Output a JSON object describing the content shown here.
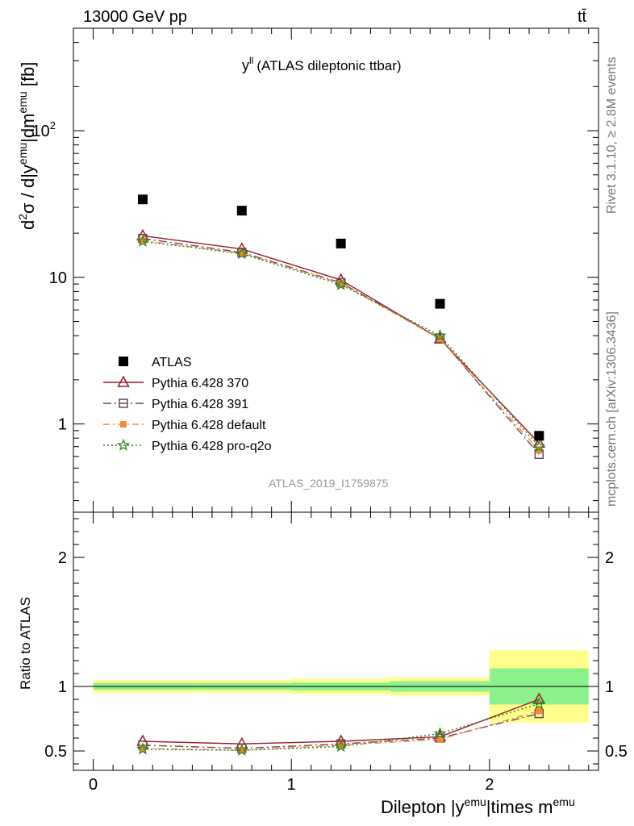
{
  "header": {
    "left": "13000 GeV pp",
    "right": "tt̄"
  },
  "side_labels": {
    "rivet": "Rivet 3.1.10, ≥ 2.8M events",
    "source": "mcplots.cern.ch [arXiv:1306.3436]"
  },
  "plot_title": "y^ll (ATLAS dileptonic ttbar)",
  "watermark": "ATLAS_2019_I1759875",
  "axes": {
    "xlabel": "Dilepton |y^emu|times m^emu",
    "ylabel_main": "d^2σ / d|y^emu|dm^emu [fb]",
    "ylabel_ratio": "Ratio to ATLAS",
    "main_ticks": [
      "1",
      "10",
      "10^2"
    ],
    "ratio_ticks": [
      "0.5",
      "1",
      "2"
    ],
    "x_ticks": [
      "0",
      "1",
      "2"
    ]
  },
  "colors": {
    "data": "#000000",
    "p370": "#a01a2a",
    "p391": "#6a4a5e",
    "pdefault": "#f58a36",
    "pq2o": "#2a8a1a",
    "band_inner": "#8cf08c",
    "band_outer": "#ffff8c"
  },
  "chart_data": {
    "type": "line",
    "x": [
      0.25,
      0.75,
      1.25,
      1.75,
      2.25
    ],
    "x_edges": [
      0,
      0.5,
      1.0,
      1.5,
      2.0,
      2.5
    ],
    "xlim": [
      -0.1,
      2.55
    ],
    "ylim_main": [
      0.25,
      500
    ],
    "y_scale_main": "log",
    "ylim_ratio": [
      0.35,
      2.35
    ],
    "legend_position": "lower-left",
    "series": [
      {
        "name": "ATLAS",
        "key": "data",
        "marker": "square",
        "dash": "none",
        "values": [
          34,
          28.5,
          17,
          6.6,
          0.83
        ],
        "ratio": [
          1,
          1,
          1,
          1,
          1
        ]
      },
      {
        "name": "Pythia 6.428 370",
        "key": "p370",
        "marker": "triangle",
        "dash": "none",
        "values": [
          19.2,
          15.6,
          9.6,
          3.8,
          0.74
        ],
        "ratio": [
          0.575,
          0.555,
          0.575,
          0.61,
          0.9
        ]
      },
      {
        "name": "Pythia 6.428 391",
        "key": "p391",
        "marker": "open-square",
        "dash": "10,4,2,4",
        "values": [
          18.4,
          14.8,
          9.2,
          3.85,
          0.62
        ],
        "ratio": [
          0.545,
          0.52,
          0.555,
          0.6,
          0.79
        ]
      },
      {
        "name": "Pythia 6.428 default",
        "key": "pdefault",
        "marker": "filled-square",
        "dash": "8,4,2,4",
        "values": [
          17.8,
          14.6,
          9.1,
          3.8,
          0.66
        ],
        "ratio": [
          0.52,
          0.505,
          0.545,
          0.59,
          0.81
        ]
      },
      {
        "name": "Pythia 6.428 pro-q2o",
        "key": "pq2o",
        "marker": "star",
        "dash": "2,3",
        "values": [
          17.6,
          14.5,
          8.9,
          4.0,
          0.7
        ],
        "ratio": [
          0.515,
          0.505,
          0.535,
          0.635,
          0.865
        ]
      }
    ],
    "ratio_band_inner": [
      0.025,
      0.025,
      0.03,
      0.04,
      0.14
    ],
    "ratio_band_outer": [
      0.05,
      0.05,
      0.06,
      0.07,
      0.28
    ]
  }
}
